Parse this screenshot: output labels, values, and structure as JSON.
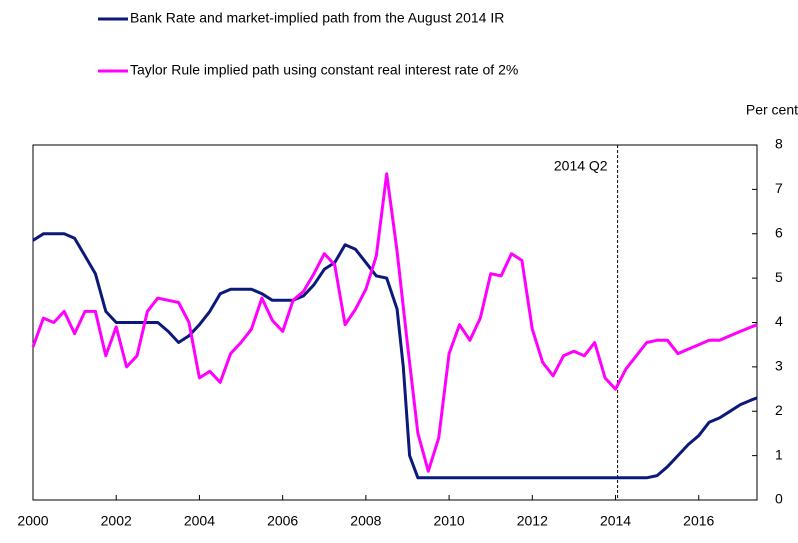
{
  "chart_data": {
    "type": "line",
    "y_axis_label": "Per cent",
    "annotation": {
      "label": "2014 Q2",
      "x": 2014.05
    },
    "xlim": [
      2000,
      2017.4
    ],
    "xticks": [
      2000,
      2002,
      2004,
      2006,
      2008,
      2010,
      2012,
      2014,
      2016
    ],
    "ylim": [
      0,
      8
    ],
    "yticks": [
      0,
      1,
      2,
      3,
      4,
      5,
      6,
      7,
      8
    ],
    "series": [
      {
        "name": "Bank Rate and market-implied path from the August 2014 IR",
        "color": "#0b1a7a",
        "x": [
          2000,
          2000.25,
          2000.5,
          2000.75,
          2001,
          2001.25,
          2001.5,
          2001.75,
          2002,
          2002.5,
          2003,
          2003.25,
          2003.5,
          2003.75,
          2004,
          2004.25,
          2004.5,
          2004.75,
          2005.25,
          2005.5,
          2005.75,
          2006.25,
          2006.5,
          2006.75,
          2007,
          2007.25,
          2007.5,
          2007.75,
          2008,
          2008.25,
          2008.5,
          2008.75,
          2008.9,
          2009.05,
          2009.25,
          2010,
          2011,
          2012,
          2013,
          2014,
          2014.75,
          2015,
          2015.25,
          2015.5,
          2015.75,
          2016,
          2016.25,
          2016.5,
          2016.75,
          2017,
          2017.25,
          2017.4
        ],
        "values": [
          5.85,
          6.0,
          6.0,
          6.0,
          5.9,
          5.5,
          5.1,
          4.25,
          4.0,
          4.0,
          4.0,
          3.8,
          3.55,
          3.7,
          3.95,
          4.25,
          4.65,
          4.75,
          4.75,
          4.65,
          4.5,
          4.5,
          4.6,
          4.85,
          5.2,
          5.35,
          5.75,
          5.65,
          5.35,
          5.05,
          5.0,
          4.3,
          3.0,
          1.0,
          0.5,
          0.5,
          0.5,
          0.5,
          0.5,
          0.5,
          0.5,
          0.55,
          0.75,
          1.0,
          1.25,
          1.45,
          1.75,
          1.85,
          2.0,
          2.15,
          2.25,
          2.3
        ]
      },
      {
        "name": "Taylor Rule implied path using constant real interest rate of 2%",
        "color": "#ff00ff",
        "x": [
          2000,
          2000.25,
          2000.5,
          2000.75,
          2001,
          2001.25,
          2001.5,
          2001.75,
          2002,
          2002.25,
          2002.5,
          2002.75,
          2003,
          2003.25,
          2003.5,
          2003.75,
          2004,
          2004.25,
          2004.5,
          2004.75,
          2005,
          2005.25,
          2005.5,
          2005.75,
          2006,
          2006.25,
          2006.5,
          2006.75,
          2007,
          2007.25,
          2007.5,
          2007.75,
          2008,
          2008.25,
          2008.5,
          2008.75,
          2009,
          2009.25,
          2009.5,
          2009.75,
          2010,
          2010.25,
          2010.5,
          2010.75,
          2011,
          2011.25,
          2011.5,
          2011.75,
          2012,
          2012.25,
          2012.5,
          2012.75,
          2013,
          2013.25,
          2013.5,
          2013.75,
          2014,
          2014.25,
          2014.5,
          2014.75,
          2015,
          2015.25,
          2015.5,
          2015.75,
          2016,
          2016.25,
          2016.5,
          2016.75,
          2017,
          2017.4
        ],
        "values": [
          3.45,
          4.1,
          4.0,
          4.25,
          3.75,
          4.25,
          4.25,
          3.25,
          3.9,
          3.0,
          3.25,
          4.25,
          4.55,
          4.5,
          4.45,
          4.0,
          2.75,
          2.9,
          2.65,
          3.3,
          3.55,
          3.85,
          4.55,
          4.05,
          3.8,
          4.5,
          4.7,
          5.1,
          5.55,
          5.3,
          3.95,
          4.3,
          4.75,
          5.5,
          7.35,
          5.6,
          3.5,
          1.5,
          0.65,
          1.4,
          3.3,
          3.95,
          3.6,
          4.1,
          5.1,
          5.05,
          5.55,
          5.4,
          3.85,
          3.1,
          2.8,
          3.25,
          3.35,
          3.25,
          3.55,
          2.75,
          2.5,
          2.95,
          3.25,
          3.55,
          3.6,
          3.6,
          3.3,
          3.4,
          3.5,
          3.6,
          3.6,
          3.7,
          3.8,
          3.95
        ]
      }
    ]
  }
}
